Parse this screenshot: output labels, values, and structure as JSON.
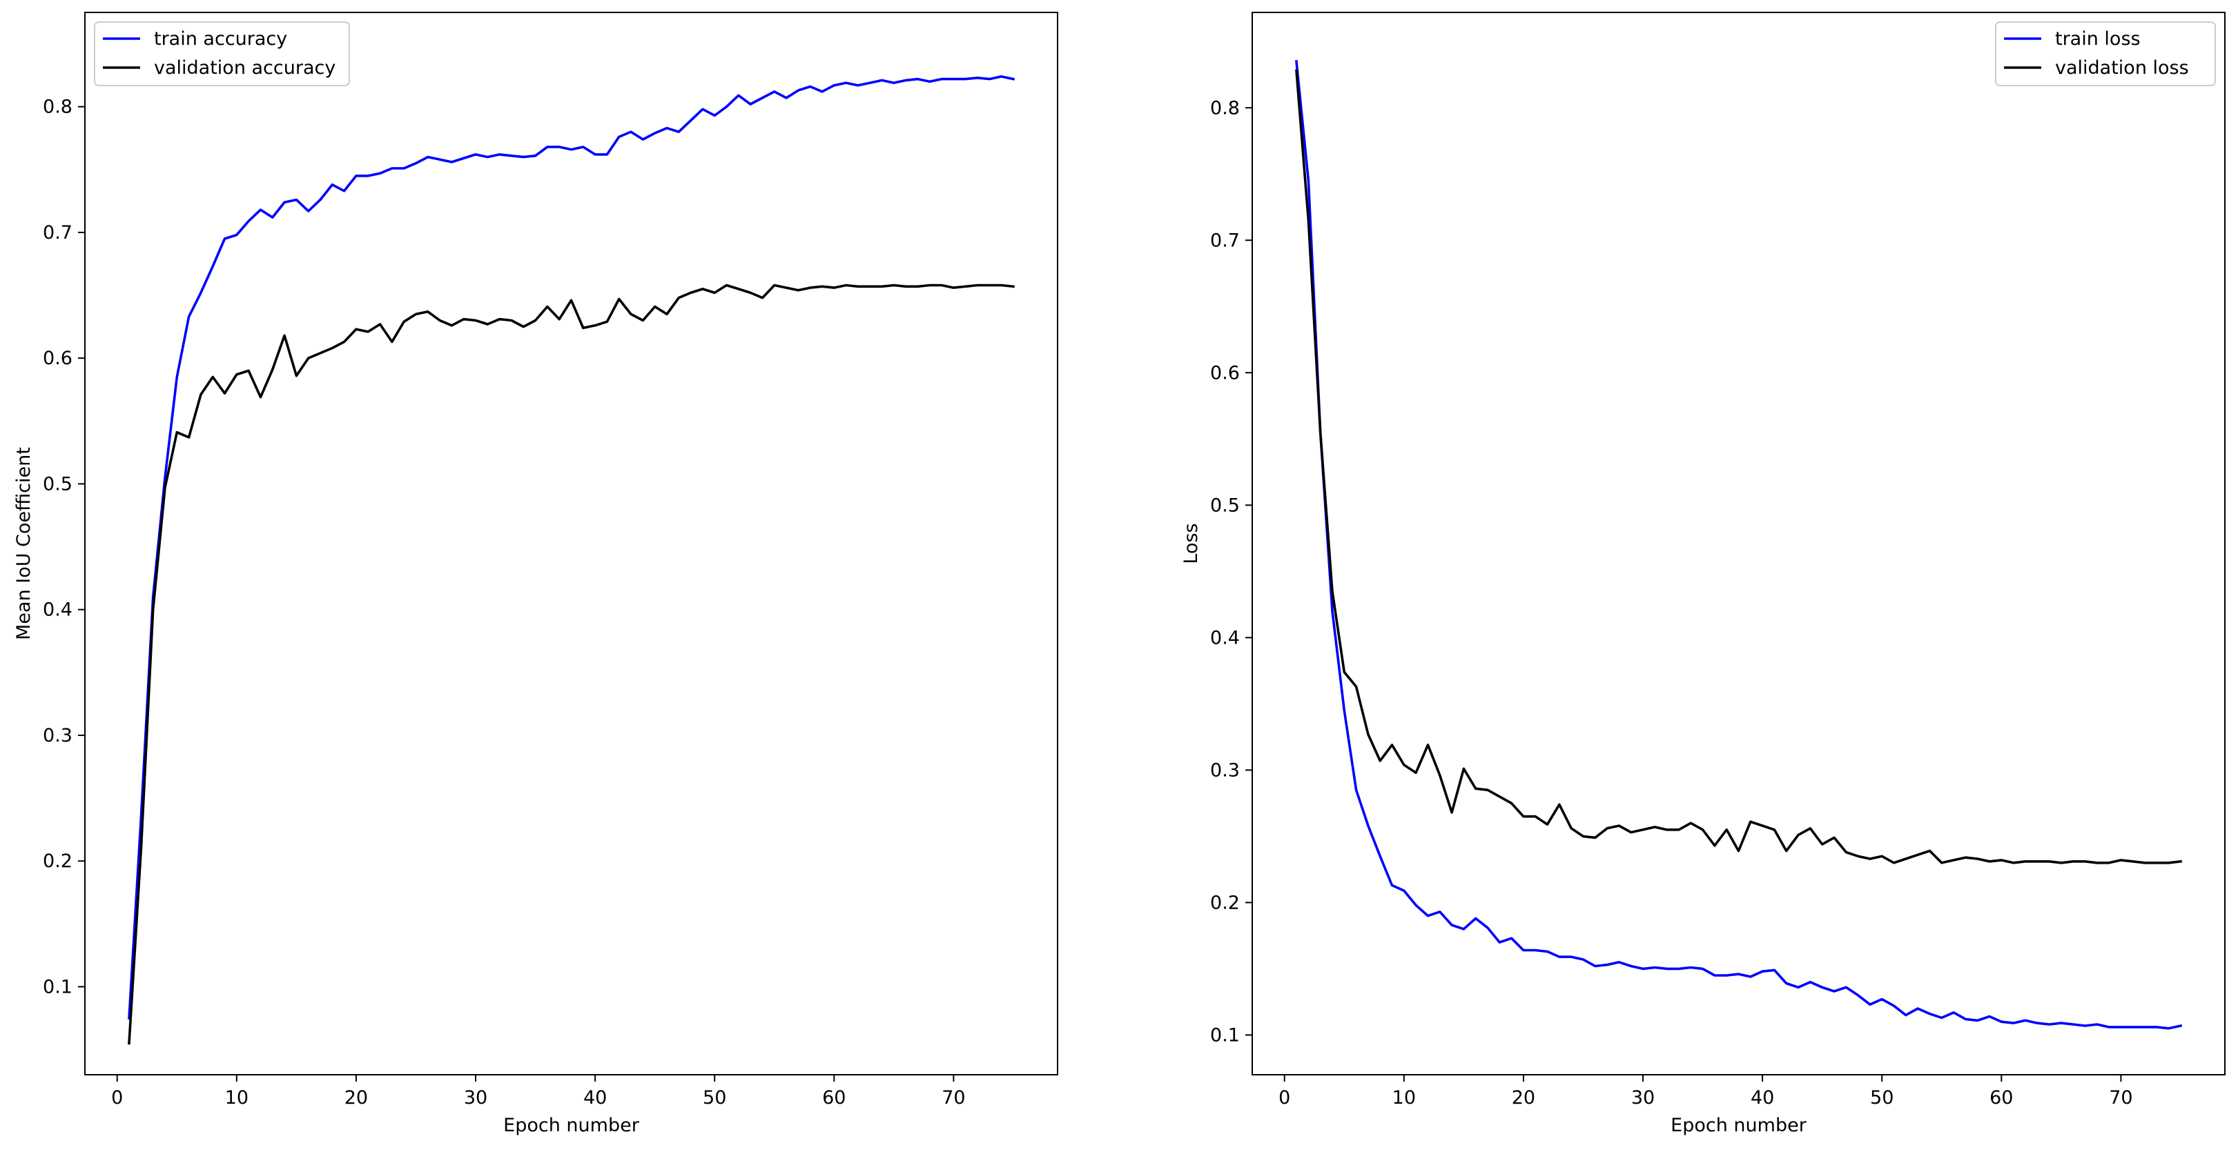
{
  "chart_data": [
    {
      "type": "line",
      "xlabel": "Epoch number",
      "ylabel": "Mean IoU Coefficient",
      "xlim": [
        -2.7,
        78.7
      ],
      "ylim": [
        0.03,
        0.875
      ],
      "xticks": [
        0,
        10,
        20,
        30,
        40,
        50,
        60,
        70
      ],
      "yticks": [
        0.1,
        0.2,
        0.3,
        0.4,
        0.5,
        0.6,
        0.7,
        0.8
      ],
      "legend_position": "top-left",
      "x": [
        1,
        2,
        3,
        4,
        5,
        6,
        7,
        8,
        9,
        10,
        11,
        12,
        13,
        14,
        15,
        16,
        17,
        18,
        19,
        20,
        21,
        22,
        23,
        24,
        25,
        26,
        27,
        28,
        29,
        30,
        31,
        32,
        33,
        34,
        35,
        36,
        37,
        38,
        39,
        40,
        41,
        42,
        43,
        44,
        45,
        46,
        47,
        48,
        49,
        50,
        51,
        52,
        53,
        54,
        55,
        56,
        57,
        58,
        59,
        60,
        61,
        62,
        63,
        64,
        65,
        66,
        67,
        68,
        69,
        70,
        71,
        72,
        73,
        74,
        75
      ],
      "series": [
        {
          "name": "train accuracy",
          "color": "#0000ff",
          "values": [
            0.075,
            0.235,
            0.41,
            0.505,
            0.585,
            0.633,
            0.652,
            0.673,
            0.695,
            0.698,
            0.709,
            0.718,
            0.712,
            0.724,
            0.726,
            0.717,
            0.726,
            0.738,
            0.733,
            0.745,
            0.745,
            0.747,
            0.751,
            0.751,
            0.755,
            0.76,
            0.758,
            0.756,
            0.759,
            0.762,
            0.76,
            0.762,
            0.761,
            0.76,
            0.761,
            0.768,
            0.768,
            0.766,
            0.768,
            0.762,
            0.762,
            0.776,
            0.78,
            0.774,
            0.779,
            0.783,
            0.78,
            0.789,
            0.798,
            0.793,
            0.8,
            0.809,
            0.802,
            0.807,
            0.812,
            0.807,
            0.813,
            0.816,
            0.812,
            0.817,
            0.819,
            0.817,
            0.819,
            0.821,
            0.819,
            0.821,
            0.822,
            0.82,
            0.822,
            0.822,
            0.822,
            0.823,
            0.822,
            0.824,
            0.822
          ]
        },
        {
          "name": "validation accuracy",
          "color": "#000000",
          "values": [
            0.055,
            0.21,
            0.4,
            0.497,
            0.541,
            0.537,
            0.571,
            0.585,
            0.572,
            0.587,
            0.59,
            0.569,
            0.591,
            0.618,
            0.586,
            0.6,
            0.604,
            0.608,
            0.613,
            0.623,
            0.621,
            0.627,
            0.613,
            0.629,
            0.635,
            0.637,
            0.63,
            0.626,
            0.631,
            0.63,
            0.627,
            0.631,
            0.63,
            0.625,
            0.63,
            0.641,
            0.631,
            0.646,
            0.624,
            0.626,
            0.629,
            0.647,
            0.635,
            0.63,
            0.641,
            0.635,
            0.648,
            0.652,
            0.655,
            0.652,
            0.658,
            0.655,
            0.652,
            0.648,
            0.658,
            0.656,
            0.654,
            0.656,
            0.657,
            0.656,
            0.658,
            0.657,
            0.657,
            0.657,
            0.658,
            0.657,
            0.657,
            0.658,
            0.658,
            0.656,
            0.657,
            0.658,
            0.658,
            0.658,
            0.657
          ]
        }
      ]
    },
    {
      "type": "line",
      "xlabel": "Epoch number",
      "ylabel": "Loss",
      "xlim": [
        -2.7,
        78.7
      ],
      "ylim": [
        0.07,
        0.872
      ],
      "xticks": [
        0,
        10,
        20,
        30,
        40,
        50,
        60,
        70
      ],
      "yticks": [
        0.1,
        0.2,
        0.3,
        0.4,
        0.5,
        0.6,
        0.7,
        0.8
      ],
      "legend_position": "top-right",
      "x": [
        1,
        2,
        3,
        4,
        5,
        6,
        7,
        8,
        9,
        10,
        11,
        12,
        13,
        14,
        15,
        16,
        17,
        18,
        19,
        20,
        21,
        22,
        23,
        24,
        25,
        26,
        27,
        28,
        29,
        30,
        31,
        32,
        33,
        34,
        35,
        36,
        37,
        38,
        39,
        40,
        41,
        42,
        43,
        44,
        45,
        46,
        47,
        48,
        49,
        50,
        51,
        52,
        53,
        54,
        55,
        56,
        57,
        58,
        59,
        60,
        61,
        62,
        63,
        64,
        65,
        66,
        67,
        68,
        69,
        70,
        71,
        72,
        73,
        74,
        75
      ],
      "series": [
        {
          "name": "train loss",
          "color": "#0000ff",
          "values": [
            0.835,
            0.745,
            0.555,
            0.42,
            0.345,
            0.285,
            0.258,
            0.235,
            0.213,
            0.209,
            0.198,
            0.19,
            0.193,
            0.183,
            0.18,
            0.188,
            0.181,
            0.17,
            0.173,
            0.164,
            0.164,
            0.163,
            0.159,
            0.159,
            0.157,
            0.152,
            0.153,
            0.155,
            0.152,
            0.15,
            0.151,
            0.15,
            0.15,
            0.151,
            0.15,
            0.145,
            0.145,
            0.146,
            0.144,
            0.148,
            0.149,
            0.139,
            0.136,
            0.14,
            0.136,
            0.133,
            0.136,
            0.13,
            0.123,
            0.127,
            0.122,
            0.115,
            0.12,
            0.116,
            0.113,
            0.117,
            0.112,
            0.111,
            0.114,
            0.11,
            0.109,
            0.111,
            0.109,
            0.108,
            0.109,
            0.108,
            0.107,
            0.108,
            0.106,
            0.106,
            0.106,
            0.106,
            0.106,
            0.105,
            0.107
          ]
        },
        {
          "name": "validation loss",
          "color": "#000000",
          "values": [
            0.828,
            0.715,
            0.555,
            0.435,
            0.374,
            0.363,
            0.327,
            0.307,
            0.319,
            0.304,
            0.298,
            0.319,
            0.296,
            0.268,
            0.301,
            0.286,
            0.285,
            0.28,
            0.275,
            0.265,
            0.265,
            0.259,
            0.274,
            0.256,
            0.25,
            0.249,
            0.256,
            0.258,
            0.253,
            0.255,
            0.257,
            0.255,
            0.255,
            0.26,
            0.255,
            0.243,
            0.255,
            0.239,
            0.261,
            0.258,
            0.255,
            0.239,
            0.251,
            0.256,
            0.244,
            0.249,
            0.238,
            0.235,
            0.233,
            0.235,
            0.23,
            0.233,
            0.236,
            0.239,
            0.23,
            0.232,
            0.234,
            0.233,
            0.231,
            0.232,
            0.23,
            0.231,
            0.231,
            0.231,
            0.23,
            0.231,
            0.231,
            0.23,
            0.23,
            0.232,
            0.231,
            0.23,
            0.23,
            0.23,
            0.231
          ]
        }
      ]
    }
  ]
}
